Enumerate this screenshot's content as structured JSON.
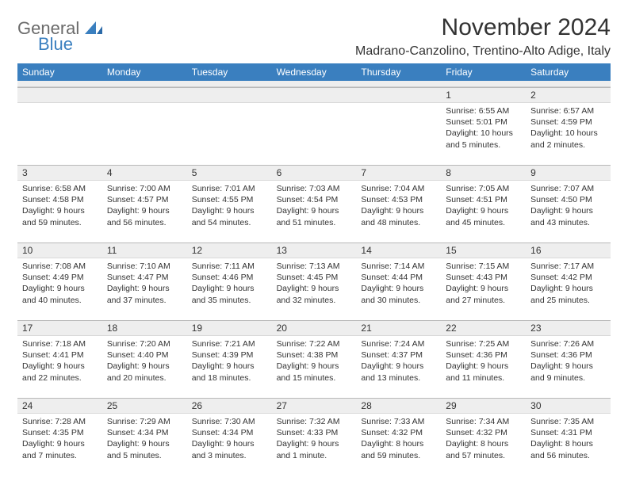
{
  "brand": {
    "general": "General",
    "blue": "Blue"
  },
  "title": "November 2024",
  "location": "Madrano-Canzolino, Trentino-Alto Adige, Italy",
  "colors": {
    "header_bg": "#3a7fbf",
    "header_text": "#ffffff",
    "grey_row": "#eeeeee",
    "border": "#b8b8b8",
    "text": "#333333",
    "logo_grey": "#6b6b6b",
    "logo_blue": "#3a7fbf"
  },
  "typography": {
    "title_fontsize": 30,
    "location_fontsize": 16,
    "dayheader_fontsize": 12,
    "cell_fontsize": 10.5
  },
  "dayNames": [
    "Sunday",
    "Monday",
    "Tuesday",
    "Wednesday",
    "Thursday",
    "Friday",
    "Saturday"
  ],
  "weeks": [
    {
      "nums": [
        "",
        "",
        "",
        "",
        "",
        "1",
        "2"
      ],
      "cells": [
        null,
        null,
        null,
        null,
        null,
        {
          "sunrise": "Sunrise: 6:55 AM",
          "sunset": "Sunset: 5:01 PM",
          "daylight": "Daylight: 10 hours and 5 minutes."
        },
        {
          "sunrise": "Sunrise: 6:57 AM",
          "sunset": "Sunset: 4:59 PM",
          "daylight": "Daylight: 10 hours and 2 minutes."
        }
      ]
    },
    {
      "nums": [
        "3",
        "4",
        "5",
        "6",
        "7",
        "8",
        "9"
      ],
      "cells": [
        {
          "sunrise": "Sunrise: 6:58 AM",
          "sunset": "Sunset: 4:58 PM",
          "daylight": "Daylight: 9 hours and 59 minutes."
        },
        {
          "sunrise": "Sunrise: 7:00 AM",
          "sunset": "Sunset: 4:57 PM",
          "daylight": "Daylight: 9 hours and 56 minutes."
        },
        {
          "sunrise": "Sunrise: 7:01 AM",
          "sunset": "Sunset: 4:55 PM",
          "daylight": "Daylight: 9 hours and 54 minutes."
        },
        {
          "sunrise": "Sunrise: 7:03 AM",
          "sunset": "Sunset: 4:54 PM",
          "daylight": "Daylight: 9 hours and 51 minutes."
        },
        {
          "sunrise": "Sunrise: 7:04 AM",
          "sunset": "Sunset: 4:53 PM",
          "daylight": "Daylight: 9 hours and 48 minutes."
        },
        {
          "sunrise": "Sunrise: 7:05 AM",
          "sunset": "Sunset: 4:51 PM",
          "daylight": "Daylight: 9 hours and 45 minutes."
        },
        {
          "sunrise": "Sunrise: 7:07 AM",
          "sunset": "Sunset: 4:50 PM",
          "daylight": "Daylight: 9 hours and 43 minutes."
        }
      ]
    },
    {
      "nums": [
        "10",
        "11",
        "12",
        "13",
        "14",
        "15",
        "16"
      ],
      "cells": [
        {
          "sunrise": "Sunrise: 7:08 AM",
          "sunset": "Sunset: 4:49 PM",
          "daylight": "Daylight: 9 hours and 40 minutes."
        },
        {
          "sunrise": "Sunrise: 7:10 AM",
          "sunset": "Sunset: 4:47 PM",
          "daylight": "Daylight: 9 hours and 37 minutes."
        },
        {
          "sunrise": "Sunrise: 7:11 AM",
          "sunset": "Sunset: 4:46 PM",
          "daylight": "Daylight: 9 hours and 35 minutes."
        },
        {
          "sunrise": "Sunrise: 7:13 AM",
          "sunset": "Sunset: 4:45 PM",
          "daylight": "Daylight: 9 hours and 32 minutes."
        },
        {
          "sunrise": "Sunrise: 7:14 AM",
          "sunset": "Sunset: 4:44 PM",
          "daylight": "Daylight: 9 hours and 30 minutes."
        },
        {
          "sunrise": "Sunrise: 7:15 AM",
          "sunset": "Sunset: 4:43 PM",
          "daylight": "Daylight: 9 hours and 27 minutes."
        },
        {
          "sunrise": "Sunrise: 7:17 AM",
          "sunset": "Sunset: 4:42 PM",
          "daylight": "Daylight: 9 hours and 25 minutes."
        }
      ]
    },
    {
      "nums": [
        "17",
        "18",
        "19",
        "20",
        "21",
        "22",
        "23"
      ],
      "cells": [
        {
          "sunrise": "Sunrise: 7:18 AM",
          "sunset": "Sunset: 4:41 PM",
          "daylight": "Daylight: 9 hours and 22 minutes."
        },
        {
          "sunrise": "Sunrise: 7:20 AM",
          "sunset": "Sunset: 4:40 PM",
          "daylight": "Daylight: 9 hours and 20 minutes."
        },
        {
          "sunrise": "Sunrise: 7:21 AM",
          "sunset": "Sunset: 4:39 PM",
          "daylight": "Daylight: 9 hours and 18 minutes."
        },
        {
          "sunrise": "Sunrise: 7:22 AM",
          "sunset": "Sunset: 4:38 PM",
          "daylight": "Daylight: 9 hours and 15 minutes."
        },
        {
          "sunrise": "Sunrise: 7:24 AM",
          "sunset": "Sunset: 4:37 PM",
          "daylight": "Daylight: 9 hours and 13 minutes."
        },
        {
          "sunrise": "Sunrise: 7:25 AM",
          "sunset": "Sunset: 4:36 PM",
          "daylight": "Daylight: 9 hours and 11 minutes."
        },
        {
          "sunrise": "Sunrise: 7:26 AM",
          "sunset": "Sunset: 4:36 PM",
          "daylight": "Daylight: 9 hours and 9 minutes."
        }
      ]
    },
    {
      "nums": [
        "24",
        "25",
        "26",
        "27",
        "28",
        "29",
        "30"
      ],
      "cells": [
        {
          "sunrise": "Sunrise: 7:28 AM",
          "sunset": "Sunset: 4:35 PM",
          "daylight": "Daylight: 9 hours and 7 minutes."
        },
        {
          "sunrise": "Sunrise: 7:29 AM",
          "sunset": "Sunset: 4:34 PM",
          "daylight": "Daylight: 9 hours and 5 minutes."
        },
        {
          "sunrise": "Sunrise: 7:30 AM",
          "sunset": "Sunset: 4:34 PM",
          "daylight": "Daylight: 9 hours and 3 minutes."
        },
        {
          "sunrise": "Sunrise: 7:32 AM",
          "sunset": "Sunset: 4:33 PM",
          "daylight": "Daylight: 9 hours and 1 minute."
        },
        {
          "sunrise": "Sunrise: 7:33 AM",
          "sunset": "Sunset: 4:32 PM",
          "daylight": "Daylight: 8 hours and 59 minutes."
        },
        {
          "sunrise": "Sunrise: 7:34 AM",
          "sunset": "Sunset: 4:32 PM",
          "daylight": "Daylight: 8 hours and 57 minutes."
        },
        {
          "sunrise": "Sunrise: 7:35 AM",
          "sunset": "Sunset: 4:31 PM",
          "daylight": "Daylight: 8 hours and 56 minutes."
        }
      ]
    }
  ]
}
